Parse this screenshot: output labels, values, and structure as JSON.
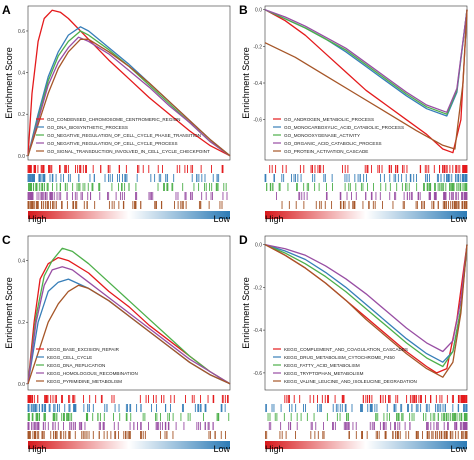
{
  "chart_data": [
    {
      "type": "line",
      "panel_letter": "A",
      "ylabel": "Enrichment Score",
      "x_start_label": "High",
      "x_end_label": "Low",
      "y_ticks": [
        0.0,
        0.2,
        0.4,
        0.6
      ],
      "ylim": [
        -0.02,
        0.72
      ],
      "legend_position": "bottom-left",
      "series": [
        {
          "name": "GO_CONDENSED_CHROMOSOME_CENTROMERIC_REGION",
          "color": "#e41a1c",
          "x": [
            0,
            0.02,
            0.05,
            0.08,
            0.12,
            0.16,
            0.2,
            0.3,
            0.4,
            0.5,
            0.6,
            0.7,
            0.8,
            0.9,
            1.0
          ],
          "values": [
            0,
            0.3,
            0.55,
            0.66,
            0.7,
            0.69,
            0.66,
            0.56,
            0.46,
            0.37,
            0.28,
            0.2,
            0.12,
            0.05,
            0
          ]
        },
        {
          "name": "GO_DNA_BIOSYNTHETIC_PROCESS",
          "color": "#377eb8",
          "x": [
            0,
            0.05,
            0.1,
            0.15,
            0.2,
            0.26,
            0.3,
            0.4,
            0.5,
            0.6,
            0.7,
            0.8,
            0.9,
            1.0
          ],
          "values": [
            0,
            0.2,
            0.38,
            0.5,
            0.58,
            0.62,
            0.6,
            0.52,
            0.44,
            0.35,
            0.26,
            0.17,
            0.08,
            0
          ]
        },
        {
          "name": "GO_NEGATIVE_REGULATION_OF_CELL_CYCLE_PHASE_TRANSITION",
          "color": "#4daf4a",
          "x": [
            0,
            0.05,
            0.1,
            0.15,
            0.2,
            0.26,
            0.3,
            0.4,
            0.5,
            0.6,
            0.7,
            0.8,
            0.9,
            1.0
          ],
          "values": [
            0,
            0.18,
            0.36,
            0.48,
            0.55,
            0.6,
            0.58,
            0.51,
            0.43,
            0.34,
            0.25,
            0.16,
            0.07,
            0
          ]
        },
        {
          "name": "GO_NEGATIVE_REGULATION_OF_CELL_CYCLE_PROCESS",
          "color": "#984ea3",
          "x": [
            0,
            0.05,
            0.1,
            0.15,
            0.2,
            0.25,
            0.3,
            0.4,
            0.5,
            0.6,
            0.7,
            0.8,
            0.9,
            1.0
          ],
          "values": [
            0,
            0.17,
            0.34,
            0.45,
            0.52,
            0.57,
            0.55,
            0.49,
            0.41,
            0.33,
            0.24,
            0.16,
            0.07,
            0
          ]
        },
        {
          "name": "GO_SIGNAL_TRANSDUCTION_INVOLVED_IN_CELL_CYCLE_CHECKPOINT",
          "color": "#a65628",
          "x": [
            0,
            0.05,
            0.1,
            0.15,
            0.2,
            0.26,
            0.3,
            0.4,
            0.5,
            0.6,
            0.7,
            0.8,
            0.9,
            1.0
          ],
          "values": [
            0,
            0.15,
            0.3,
            0.42,
            0.5,
            0.56,
            0.56,
            0.5,
            0.43,
            0.35,
            0.26,
            0.17,
            0.08,
            0
          ]
        }
      ]
    },
    {
      "type": "line",
      "panel_letter": "B",
      "ylabel": "Enrichment Score",
      "x_start_label": "High",
      "x_end_label": "Low",
      "y_ticks": [
        -0.6,
        -0.4,
        -0.2,
        0.0
      ],
      "ylim": [
        -0.82,
        0.02
      ],
      "legend_position": "bottom-left",
      "series": [
        {
          "name": "GO_ANDROGEN_METABOLIC_PROCESS",
          "color": "#e41a1c",
          "x": [
            0,
            0.1,
            0.2,
            0.3,
            0.4,
            0.5,
            0.6,
            0.7,
            0.8,
            0.88,
            0.93,
            0.97,
            1.0
          ],
          "values": [
            0,
            -0.06,
            -0.14,
            -0.24,
            -0.34,
            -0.44,
            -0.52,
            -0.6,
            -0.68,
            -0.76,
            -0.78,
            -0.6,
            0
          ]
        },
        {
          "name": "GO_MONOCARBOXYLIC_ACID_CATABOLIC_PROCESS",
          "color": "#377eb8",
          "x": [
            0,
            0.1,
            0.2,
            0.3,
            0.4,
            0.5,
            0.6,
            0.7,
            0.8,
            0.9,
            0.95,
            1.0
          ],
          "values": [
            0,
            -0.05,
            -0.1,
            -0.16,
            -0.23,
            -0.31,
            -0.39,
            -0.47,
            -0.54,
            -0.58,
            -0.45,
            0
          ]
        },
        {
          "name": "GO_MONOOXYGENASE_ACTIVITY",
          "color": "#4daf4a",
          "x": [
            0,
            0.1,
            0.2,
            0.3,
            0.4,
            0.5,
            0.6,
            0.7,
            0.8,
            0.9,
            0.95,
            1.0
          ],
          "values": [
            0,
            -0.05,
            -0.1,
            -0.16,
            -0.22,
            -0.3,
            -0.38,
            -0.46,
            -0.53,
            -0.57,
            -0.44,
            0
          ]
        },
        {
          "name": "GO_ORGANIC_ACID_CATABOLIC_PROCESS",
          "color": "#984ea3",
          "x": [
            0,
            0.1,
            0.2,
            0.3,
            0.4,
            0.5,
            0.6,
            0.7,
            0.8,
            0.9,
            0.95,
            1.0
          ],
          "values": [
            0,
            -0.04,
            -0.09,
            -0.15,
            -0.21,
            -0.29,
            -0.37,
            -0.45,
            -0.52,
            -0.56,
            -0.43,
            0
          ]
        },
        {
          "name": "GO_PROTEIN_ACTIVATION_CASCADE",
          "color": "#a65628",
          "x": [
            0,
            0.15,
            0.3,
            0.45,
            0.6,
            0.75,
            0.88,
            0.94,
            0.98,
            1.0
          ],
          "values": [
            -0.18,
            -0.26,
            -0.36,
            -0.46,
            -0.56,
            -0.66,
            -0.74,
            -0.76,
            -0.4,
            0
          ]
        }
      ]
    },
    {
      "type": "line",
      "panel_letter": "C",
      "ylabel": "Enrichment Score",
      "x_start_label": "High",
      "x_end_label": "Low",
      "y_ticks": [
        0.0,
        0.2,
        0.4
      ],
      "ylim": [
        -0.02,
        0.48
      ],
      "legend_position": "bottom-left",
      "series": [
        {
          "name": "KEGG_BASE_EXCISION_REPAIR",
          "color": "#e41a1c",
          "x": [
            0,
            0.03,
            0.06,
            0.1,
            0.15,
            0.2,
            0.3,
            0.4,
            0.5,
            0.6,
            0.7,
            0.8,
            0.9,
            1.0
          ],
          "values": [
            0,
            0.2,
            0.34,
            0.39,
            0.41,
            0.4,
            0.36,
            0.3,
            0.25,
            0.19,
            0.14,
            0.09,
            0.04,
            0
          ]
        },
        {
          "name": "KEGG_CELL_CYCLE",
          "color": "#377eb8",
          "x": [
            0,
            0.05,
            0.1,
            0.15,
            0.2,
            0.3,
            0.4,
            0.5,
            0.6,
            0.7,
            0.8,
            0.9,
            1.0
          ],
          "values": [
            0,
            0.2,
            0.3,
            0.33,
            0.34,
            0.31,
            0.27,
            0.22,
            0.17,
            0.12,
            0.07,
            0.03,
            0
          ]
        },
        {
          "name": "KEGG_DNA_REPLICATION",
          "color": "#4daf4a",
          "x": [
            0,
            0.04,
            0.08,
            0.12,
            0.17,
            0.22,
            0.3,
            0.4,
            0.5,
            0.6,
            0.7,
            0.8,
            0.9,
            1.0
          ],
          "values": [
            0,
            0.22,
            0.35,
            0.4,
            0.44,
            0.43,
            0.39,
            0.33,
            0.27,
            0.21,
            0.15,
            0.09,
            0.04,
            0
          ]
        },
        {
          "name": "KEGG_HOMOLOGOUS_RECOMBINATION",
          "color": "#984ea3",
          "x": [
            0,
            0.04,
            0.08,
            0.12,
            0.17,
            0.22,
            0.3,
            0.4,
            0.5,
            0.6,
            0.7,
            0.8,
            0.9,
            1.0
          ],
          "values": [
            0,
            0.2,
            0.32,
            0.37,
            0.38,
            0.37,
            0.33,
            0.28,
            0.23,
            0.18,
            0.13,
            0.08,
            0.04,
            0
          ]
        },
        {
          "name": "KEGG_PYRIMIDINE_METABOLISM",
          "color": "#a65628",
          "x": [
            0,
            0.05,
            0.1,
            0.15,
            0.2,
            0.25,
            0.3,
            0.4,
            0.5,
            0.6,
            0.7,
            0.8,
            0.9,
            1.0
          ],
          "values": [
            0,
            0.1,
            0.2,
            0.26,
            0.3,
            0.32,
            0.31,
            0.27,
            0.22,
            0.17,
            0.12,
            0.07,
            0.03,
            0
          ]
        }
      ]
    },
    {
      "type": "line",
      "panel_letter": "D",
      "ylabel": "Enrichment Score",
      "x_start_label": "High",
      "x_end_label": "Low",
      "y_ticks": [
        -0.6,
        -0.4,
        -0.2,
        0.0
      ],
      "ylim": [
        -0.68,
        0.04
      ],
      "legend_position": "bottom-left",
      "series": [
        {
          "name": "KEGG_COMPLEMENT_AND_COAGULATION_CASCADES",
          "color": "#e41a1c",
          "x": [
            0,
            0.1,
            0.2,
            0.3,
            0.4,
            0.5,
            0.6,
            0.7,
            0.8,
            0.85,
            0.9,
            0.95,
            1.0
          ],
          "values": [
            0,
            -0.05,
            -0.11,
            -0.18,
            -0.26,
            -0.34,
            -0.42,
            -0.5,
            -0.57,
            -0.6,
            -0.58,
            -0.35,
            0
          ]
        },
        {
          "name": "KEGG_DRUG_METABOLISM_CYTOCHROME_P450",
          "color": "#377eb8",
          "x": [
            0,
            0.1,
            0.2,
            0.3,
            0.4,
            0.5,
            0.6,
            0.7,
            0.8,
            0.88,
            0.93,
            0.97,
            1.0
          ],
          "values": [
            0,
            -0.03,
            -0.07,
            -0.13,
            -0.2,
            -0.28,
            -0.36,
            -0.44,
            -0.51,
            -0.55,
            -0.5,
            -0.3,
            0
          ]
        },
        {
          "name": "KEGG_FATTY_ACID_METABOLISM",
          "color": "#4daf4a",
          "x": [
            0,
            0.1,
            0.2,
            0.3,
            0.4,
            0.5,
            0.6,
            0.7,
            0.8,
            0.88,
            0.93,
            0.97,
            1.0
          ],
          "values": [
            0,
            -0.04,
            -0.09,
            -0.15,
            -0.22,
            -0.3,
            -0.38,
            -0.46,
            -0.53,
            -0.57,
            -0.5,
            -0.3,
            0
          ]
        },
        {
          "name": "KEGG_TRYPTOPHAN_METABOLISM",
          "color": "#984ea3",
          "x": [
            0,
            0.1,
            0.2,
            0.3,
            0.4,
            0.5,
            0.6,
            0.7,
            0.8,
            0.88,
            0.93,
            0.97,
            1.0
          ],
          "values": [
            0,
            -0.02,
            -0.05,
            -0.1,
            -0.16,
            -0.23,
            -0.31,
            -0.39,
            -0.46,
            -0.5,
            -0.45,
            -0.26,
            0
          ]
        },
        {
          "name": "KEGG_VALINE_LEUCINE_AND_ISOLEUCINE_DEGRADATION",
          "color": "#a65628",
          "x": [
            0,
            0.1,
            0.2,
            0.3,
            0.4,
            0.5,
            0.6,
            0.7,
            0.8,
            0.88,
            0.93,
            0.97,
            1.0
          ],
          "values": [
            0,
            -0.05,
            -0.11,
            -0.18,
            -0.26,
            -0.35,
            -0.43,
            -0.51,
            -0.58,
            -0.62,
            -0.55,
            -0.32,
            0
          ]
        }
      ]
    }
  ]
}
